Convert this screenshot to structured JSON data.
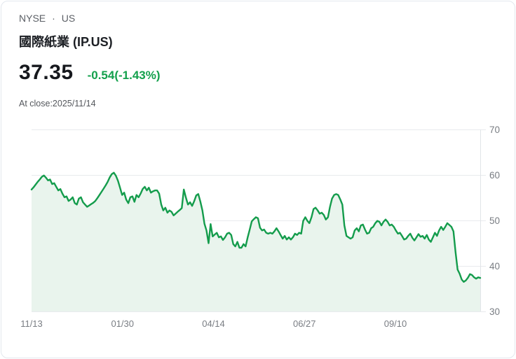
{
  "card": {
    "exchange": "NYSE",
    "separator": "·",
    "region": "US",
    "title": "國際紙業 (IP.US)",
    "price": "37.35",
    "change": "-0.54(-1.43%)",
    "close_label": "At close:2025/11/14"
  },
  "colors": {
    "change_text": "#13a04c",
    "line": "#149c4c",
    "area_fill": "#e9f4ed",
    "grid": "#e8eaed",
    "axis_line": "#e1e4e8",
    "tick_label": "#797d83"
  },
  "chart_data": {
    "type": "area",
    "title": "IP.US 1-year closing price",
    "xlabel": "",
    "ylabel": "",
    "ylim": [
      30,
      70
    ],
    "y_ticks": [
      30,
      40,
      50,
      60,
      70
    ],
    "x_tick_labels": [
      "11/13",
      "01/30",
      "04/14",
      "06/27",
      "09/10"
    ],
    "grid": "horizontal",
    "legend": "none",
    "values": [
      56.8,
      57.3,
      57.9,
      58.5,
      59.0,
      59.6,
      59.9,
      59.4,
      58.8,
      59.0,
      58.0,
      58.2,
      57.4,
      56.6,
      56.9,
      55.9,
      55.1,
      55.3,
      54.3,
      54.6,
      55.1,
      53.8,
      53.5,
      54.8,
      55.1,
      54.0,
      53.5,
      53.0,
      53.3,
      53.6,
      53.9,
      54.3,
      54.9,
      55.6,
      56.3,
      57.0,
      57.7,
      58.5,
      59.5,
      60.2,
      60.5,
      59.8,
      58.7,
      57.2,
      55.6,
      56.1,
      54.6,
      53.8,
      55.1,
      55.3,
      54.1,
      55.6,
      55.1,
      55.9,
      56.9,
      57.4,
      56.6,
      57.2,
      56.1,
      56.4,
      56.6,
      56.6,
      55.9,
      53.5,
      52.2,
      52.8,
      51.7,
      52.2,
      51.9,
      51.1,
      51.5,
      51.9,
      52.3,
      52.7,
      56.8,
      55.0,
      53.5,
      54.0,
      53.2,
      54.2,
      55.5,
      55.8,
      54.2,
      52.2,
      49.3,
      47.8,
      45.0,
      49.2,
      46.5,
      46.9,
      47.3,
      46.3,
      46.5,
      45.7,
      46.3,
      47.1,
      47.3,
      46.8,
      44.8,
      44.3,
      45.3,
      44.0,
      44.0,
      44.8,
      44.3,
      46.3,
      48.0,
      49.8,
      50.3,
      50.7,
      50.5,
      48.4,
      47.8,
      48.0,
      47.3,
      47.1,
      47.3,
      47.1,
      47.6,
      48.3,
      47.6,
      46.8,
      46.0,
      46.6,
      45.8,
      46.3,
      45.8,
      46.3,
      47.1,
      46.8,
      47.3,
      47.1,
      49.9,
      50.7,
      49.9,
      49.4,
      50.7,
      52.5,
      52.8,
      52.2,
      51.5,
      51.7,
      51.2,
      50.2,
      50.7,
      53.0,
      54.8,
      55.6,
      55.8,
      55.6,
      54.6,
      53.5,
      48.9,
      46.6,
      46.3,
      46.0,
      46.3,
      47.8,
      48.3,
      47.6,
      48.9,
      49.1,
      48.0,
      47.1,
      47.3,
      48.3,
      48.6,
      49.4,
      49.9,
      49.7,
      48.9,
      49.7,
      50.2,
      49.7,
      48.9,
      49.1,
      48.6,
      47.8,
      47.1,
      47.3,
      46.6,
      45.8,
      46.0,
      46.6,
      47.1,
      46.2,
      45.6,
      46.3,
      47.0,
      46.4,
      46.6,
      46.0,
      46.8,
      45.8,
      45.3,
      46.3,
      47.3,
      46.6,
      47.8,
      48.6,
      47.9,
      48.6,
      49.4,
      49.0,
      48.6,
      47.6,
      43.0,
      39.2,
      38.3,
      37.0,
      36.5,
      36.8,
      37.4,
      38.2,
      38.0,
      37.5,
      37.2,
      37.5,
      37.35
    ]
  }
}
